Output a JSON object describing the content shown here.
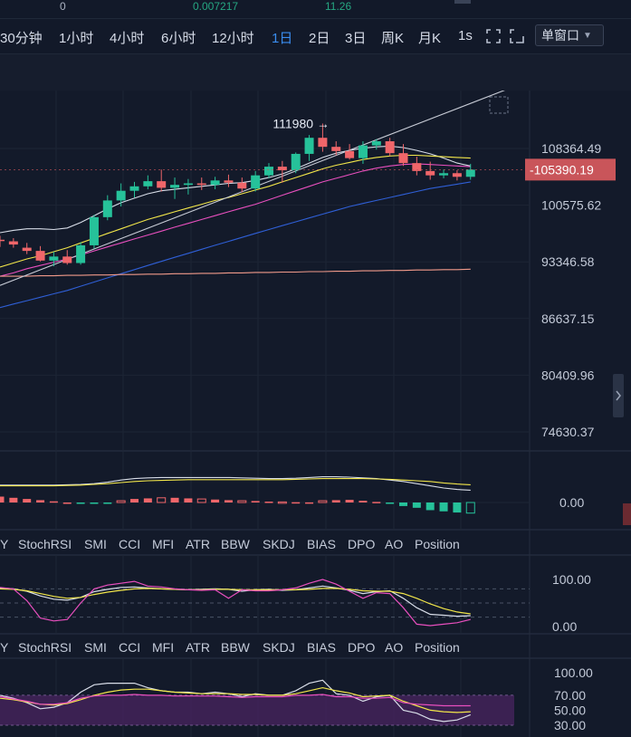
{
  "header": {
    "value_a": "0",
    "value_b": "0.007217",
    "value_c": "11.26"
  },
  "toolbar": {
    "intervals": [
      "30分钟",
      "1小时",
      "4小时",
      "6小时",
      "12小时",
      "1日",
      "2日",
      "3日",
      "周K",
      "月K",
      "1s"
    ],
    "active_interval": "1日",
    "window_mode": "单窗口"
  },
  "colors": {
    "background": "#131a2a",
    "up": "#26c29a",
    "down": "#f0666a",
    "accent": "#3a8df0",
    "ma_white": "#d8dde8",
    "ma_yellow": "#f2e64a",
    "ma_pink": "#e84fbe",
    "ma_blue": "#2f5fd6",
    "ma_salmon": "#f19a8a",
    "rsi_band": "#4a2460"
  },
  "indicator_tabs": [
    "Y",
    "StochRSI",
    "SMI",
    "CCI",
    "MFI",
    "ATR",
    "BBW",
    "SKDJ",
    "BIAS",
    "DPO",
    "AO",
    "Position"
  ],
  "chart_data": [
    {
      "type": "candlestick",
      "panel": "price",
      "y_ticks": [
        "108364.49",
        "100575.62",
        "93346.58",
        "86637.15",
        "80409.96",
        "74630.37"
      ],
      "y_tick_values": [
        108364.49,
        100575.62,
        93346.58,
        86637.15,
        80409.96,
        74630.37
      ],
      "y_scale": "log",
      "current_price_label": "105390.19",
      "current_price": 105390.19,
      "max_annotation": "111980",
      "max_value": 111980,
      "ohlc": [
        [
          96100,
          96600,
          95200,
          96000
        ],
        [
          95900,
          96300,
          95100,
          95500
        ],
        [
          95100,
          95700,
          94300,
          94700
        ],
        [
          94700,
          95300,
          93400,
          93500
        ],
        [
          93500,
          94600,
          92800,
          94000
        ],
        [
          94000,
          94800,
          93000,
          93200
        ],
        [
          93200,
          95800,
          93000,
          95400
        ],
        [
          95400,
          99300,
          95000,
          99000
        ],
        [
          99000,
          101900,
          98600,
          101200
        ],
        [
          101200,
          103500,
          100400,
          102500
        ],
        [
          102500,
          103700,
          101600,
          103100
        ],
        [
          103100,
          104600,
          102700,
          103800
        ],
        [
          103800,
          105400,
          102400,
          102900
        ],
        [
          102900,
          104300,
          101400,
          103300
        ],
        [
          103300,
          104100,
          102000,
          103500
        ],
        [
          103500,
          104300,
          102600,
          103300
        ],
        [
          103300,
          104400,
          102700,
          103900
        ],
        [
          103900,
          104700,
          103000,
          103600
        ],
        [
          103600,
          104300,
          102300,
          102800
        ],
        [
          102800,
          105200,
          102400,
          104600
        ],
        [
          104600,
          106300,
          104200,
          105800
        ],
        [
          105800,
          106600,
          103600,
          105300
        ],
        [
          105300,
          107800,
          104900,
          107600
        ],
        [
          107600,
          110300,
          106600,
          109900
        ],
        [
          109900,
          111980,
          107900,
          108600
        ],
        [
          108600,
          109400,
          107400,
          108000
        ],
        [
          108000,
          109000,
          106800,
          107000
        ],
        [
          107000,
          109400,
          106200,
          108800
        ],
        [
          108800,
          109700,
          108200,
          109400
        ],
        [
          109400,
          109900,
          107300,
          107700
        ],
        [
          107700,
          109000,
          105900,
          106300
        ],
        [
          106300,
          107200,
          104600,
          105200
        ],
        [
          105200,
          106500,
          104000,
          104600
        ],
        [
          104600,
          105400,
          104200,
          104900
        ],
        [
          104900,
          105300,
          103900,
          104400
        ],
        [
          104400,
          106200,
          104000,
          105390.19
        ]
      ],
      "ma_series": [
        {
          "color": "#d8dde8",
          "values": [
            97000,
            97300,
            97500,
            97500,
            97400,
            97600,
            98300,
            99200,
            100100,
            100900,
            101500,
            102100,
            102500,
            102700,
            102900,
            103100,
            103300,
            103500,
            103600,
            103900,
            104300,
            104800,
            105500,
            106300,
            107100,
            107700,
            108100,
            108400,
            108600,
            108700,
            108500,
            108100,
            107600,
            107000,
            106300,
            105900
          ]
        },
        {
          "color": "#f2e64a",
          "values": [
            92700,
            93200,
            93700,
            94100,
            94600,
            95100,
            95700,
            96300,
            96900,
            97500,
            98100,
            98700,
            99200,
            99700,
            100200,
            100700,
            101200,
            101600,
            102100,
            102600,
            103100,
            103700,
            104300,
            104900,
            105500,
            106000,
            106400,
            106800,
            107100,
            107300,
            107400,
            107400,
            107300,
            107200,
            107100,
            107000
          ]
        },
        {
          "color": "#e84fbe",
          "values": [
            91600,
            92000,
            92500,
            92900,
            93300,
            93700,
            94200,
            94700,
            95200,
            95700,
            96200,
            96700,
            97200,
            97700,
            98200,
            98700,
            99200,
            99700,
            100200,
            100700,
            101300,
            101900,
            102500,
            103100,
            103700,
            104200,
            104700,
            105200,
            105600,
            105900,
            106100,
            106200,
            106100,
            106000,
            105900,
            105800
          ]
        },
        {
          "color": "#2f5fd6",
          "values": [
            87900,
            88300,
            88700,
            89100,
            89500,
            89900,
            90400,
            90900,
            91400,
            91900,
            92400,
            92900,
            93400,
            93900,
            94400,
            94900,
            95400,
            95900,
            96400,
            96900,
            97400,
            97900,
            98400,
            98900,
            99400,
            99900,
            100400,
            100800,
            101200,
            101600,
            102000,
            102400,
            102800,
            103100,
            103400,
            103700
          ]
        },
        {
          "color": "#f19a8a",
          "values": [
            91600,
            91600,
            91600,
            91650,
            91650,
            91700,
            91700,
            91750,
            91750,
            91800,
            91800,
            91850,
            91850,
            91900,
            91900,
            91950,
            91950,
            92000,
            92000,
            92050,
            92050,
            92100,
            92100,
            92150,
            92150,
            92200,
            92200,
            92250,
            92250,
            92300,
            92300,
            92350,
            92350,
            92400,
            92400,
            92450
          ]
        }
      ]
    },
    {
      "type": "bar",
      "panel": "histogram_oscillator",
      "y_ticks": [
        "0.00"
      ],
      "values": [
        1.0,
        0.8,
        0.6,
        0.4,
        0.2,
        0,
        -0.2,
        -0.2,
        -0.15,
        0.3,
        0.6,
        0.7,
        0.8,
        0.8,
        0.7,
        0.6,
        0.5,
        0.4,
        0.3,
        0.25,
        0.15,
        0.1,
        0.05,
        0.02,
        0.3,
        0.4,
        0.45,
        0.3,
        0.1,
        -0.2,
        -0.6,
        -0.9,
        -1.3,
        -1.5,
        -1.7,
        -1.8
      ],
      "lines": [
        {
          "color": "#d8dde8",
          "values": [
            2.4,
            2.4,
            2.4,
            2.4,
            2.4,
            2.45,
            2.5,
            2.6,
            2.8,
            3.1,
            3.3,
            3.4,
            3.45,
            3.45,
            3.45,
            3.45,
            3.45,
            3.45,
            3.4,
            3.35,
            3.3,
            3.3,
            3.35,
            3.45,
            3.55,
            3.55,
            3.5,
            3.4,
            3.3,
            3.1,
            2.9,
            2.6,
            2.3,
            2.0,
            1.8,
            1.7
          ]
        },
        {
          "color": "#f2e64a",
          "values": [
            2.3,
            2.3,
            2.3,
            2.3,
            2.3,
            2.35,
            2.4,
            2.5,
            2.6,
            2.75,
            2.9,
            3.0,
            3.05,
            3.1,
            3.15,
            3.15,
            3.15,
            3.15,
            3.15,
            3.15,
            3.15,
            3.15,
            3.2,
            3.25,
            3.3,
            3.3,
            3.3,
            3.3,
            3.25,
            3.2,
            3.1,
            3.0,
            2.9,
            2.7,
            2.55,
            2.45
          ]
        }
      ]
    },
    {
      "type": "line",
      "panel": "stoch_rsi",
      "y_ticks": [
        "100.00",
        "0.00"
      ],
      "ylim": [
        -10,
        115
      ],
      "dashed_levels": [
        20,
        50,
        80
      ],
      "series": [
        {
          "color": "#d8dde8",
          "values": [
            82,
            80,
            75,
            65,
            58,
            56,
            62,
            74,
            79,
            83,
            84,
            82,
            80,
            79,
            78,
            79,
            80,
            79,
            75,
            78,
            79,
            77,
            78,
            82,
            86,
            82,
            77,
            70,
            74,
            76,
            60,
            40,
            26,
            24,
            22,
            23
          ]
        },
        {
          "color": "#f2e64a",
          "values": [
            80,
            79,
            76,
            70,
            64,
            60,
            62,
            68,
            73,
            77,
            80,
            81,
            80,
            79,
            78,
            78,
            79,
            79,
            78,
            78,
            78,
            78,
            78,
            79,
            81,
            81,
            79,
            76,
            75,
            75,
            70,
            60,
            48,
            38,
            31,
            27
          ]
        },
        {
          "color": "#e84fbe",
          "values": [
            83,
            80,
            55,
            18,
            12,
            15,
            50,
            80,
            88,
            92,
            96,
            86,
            84,
            80,
            78,
            77,
            78,
            60,
            78,
            76,
            76,
            78,
            82,
            92,
            100,
            90,
            75,
            60,
            72,
            70,
            40,
            5,
            2,
            5,
            8,
            15
          ]
        }
      ]
    },
    {
      "type": "line",
      "panel": "rsi",
      "y_ticks": [
        "100.00",
        "70.00",
        "50.00",
        "30.00"
      ],
      "ylim": [
        22,
        108
      ],
      "band": [
        30,
        70
      ],
      "series": [
        {
          "color": "#d8dde8",
          "values": [
            70,
            66,
            60,
            52,
            54,
            60,
            74,
            84,
            86,
            86,
            86,
            80,
            76,
            74,
            74,
            72,
            74,
            72,
            68,
            72,
            70,
            70,
            76,
            86,
            90,
            72,
            70,
            62,
            68,
            70,
            50,
            46,
            38,
            35,
            37,
            44
          ]
        },
        {
          "color": "#f2e64a",
          "values": [
            66,
            64,
            61,
            58,
            57,
            59,
            64,
            70,
            74,
            77,
            78,
            78,
            76,
            74,
            73,
            72,
            72,
            72,
            71,
            71,
            70,
            70,
            72,
            76,
            80,
            76,
            73,
            68,
            69,
            70,
            62,
            56,
            50,
            48,
            47,
            48
          ]
        },
        {
          "color": "#e84fbe",
          "values": [
            68,
            65,
            62,
            58,
            58,
            60,
            66,
            69,
            70,
            70,
            71,
            70,
            70,
            69,
            69,
            69,
            69,
            68,
            67,
            68,
            68,
            68,
            70,
            70,
            71,
            68,
            68,
            66,
            66,
            67,
            60,
            58,
            57,
            56,
            56,
            56
          ]
        }
      ]
    }
  ]
}
